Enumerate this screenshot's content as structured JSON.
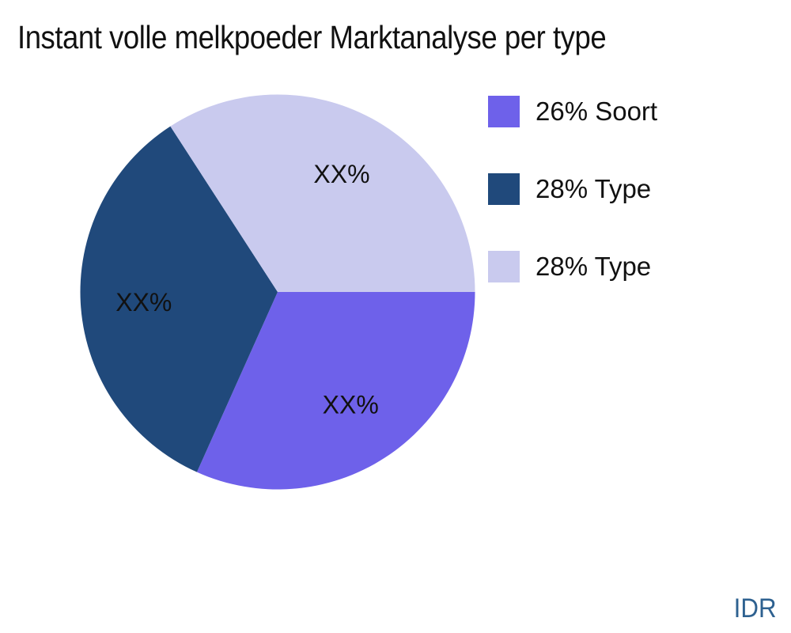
{
  "page": {
    "background": "#ffffff"
  },
  "chart_data": {
    "type": "pie",
    "title": "Instant volle melkpoeder Marktanalyse per type",
    "slices": [
      {
        "legend_label": "26% Soort",
        "value": 26,
        "color": "#6E61EA",
        "slice_label": "XX%"
      },
      {
        "legend_label": "28% Type",
        "value": 28,
        "color": "#20497B",
        "slice_label": "XX%"
      },
      {
        "legend_label": "28% Type",
        "value": 28,
        "color": "#C9CAEE",
        "slice_label": "XX%"
      }
    ],
    "start_angle_deg": 0,
    "direction": "clockwise",
    "label_distance": 0.68,
    "slice_label_color": "#111111",
    "slice_label_font_px": 32,
    "legend_position": "right",
    "grid": false
  },
  "footer": {
    "currency_label": "IDR"
  }
}
